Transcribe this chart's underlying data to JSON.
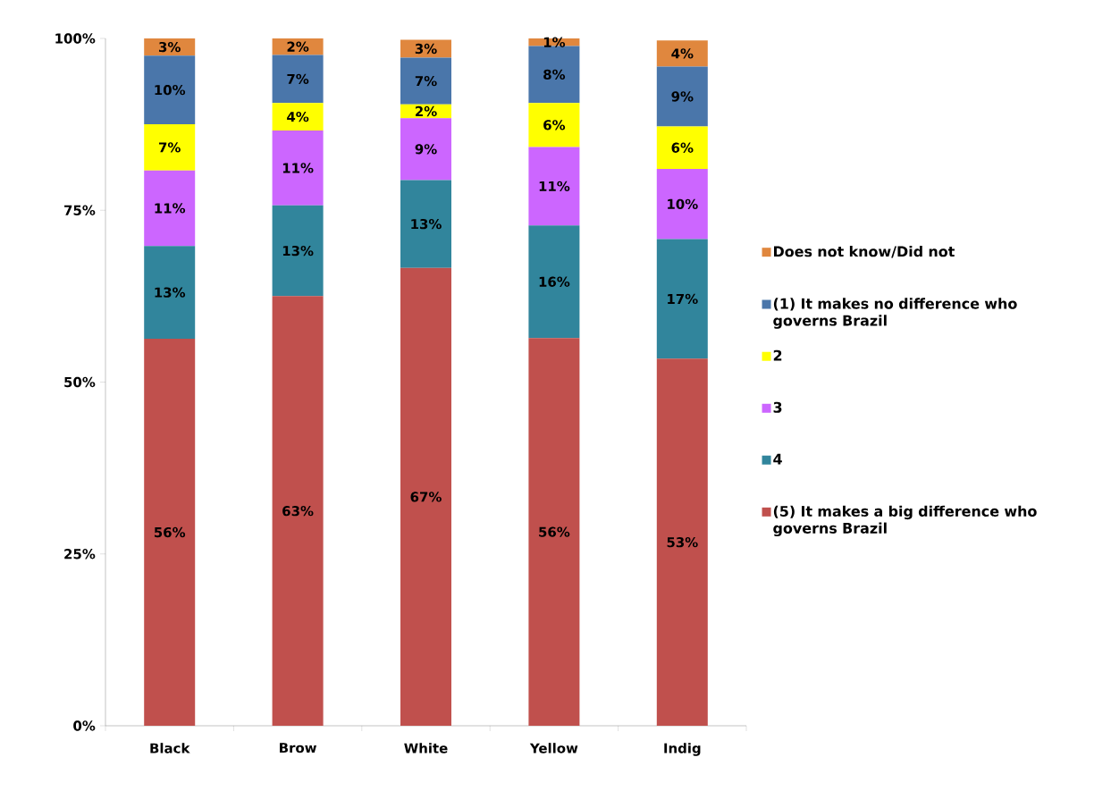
{
  "chart_data": {
    "type": "bar",
    "stacked": true,
    "categories": [
      "Black",
      "Brow",
      "White",
      "Yellow",
      "Indig"
    ],
    "series": [
      {
        "name": "(5) It makes a big difference who governs Brazil",
        "color": "#c0504d",
        "values": [
          56.3,
          62.5,
          66.6,
          56.4,
          53.4
        ],
        "value_labels": [
          "56%",
          "63%",
          "67%",
          "56%",
          "53%"
        ]
      },
      {
        "name": "4",
        "color": "#31859c",
        "values": [
          13.5,
          13.2,
          12.8,
          16.4,
          17.4
        ],
        "value_labels": [
          "13%",
          "13%",
          "13%",
          "16%",
          "17%"
        ]
      },
      {
        "name": "3",
        "color": "#cc66ff",
        "values": [
          11.0,
          10.9,
          9.0,
          11.4,
          10.2
        ],
        "value_labels": [
          "11%",
          "11%",
          "9%",
          "11%",
          "10%"
        ]
      },
      {
        "name": "2",
        "color": "#ffff00",
        "values": [
          6.7,
          4.0,
          2.0,
          6.4,
          6.2
        ],
        "value_labels": [
          "7%",
          "4%",
          "2%",
          "6%",
          "6%"
        ]
      },
      {
        "name": "(1) It makes no difference who governs Brazil",
        "color": "#4a76aa",
        "values": [
          10.0,
          7.0,
          6.8,
          8.3,
          8.7
        ],
        "value_labels": [
          "10%",
          "7%",
          "7%",
          "8%",
          "9%"
        ]
      },
      {
        "name": "Does not know/Did not",
        "color": "#e0873e",
        "values": [
          2.5,
          2.4,
          2.6,
          1.1,
          3.8
        ],
        "value_labels": [
          "3%",
          "2%",
          "3%",
          "1%",
          "4%"
        ]
      }
    ],
    "ylim": [
      0,
      100
    ],
    "yticks": [
      {
        "value": 0,
        "label": "0%"
      },
      {
        "value": 25,
        "label": "25%"
      },
      {
        "value": 50,
        "label": "50%"
      },
      {
        "value": 75,
        "label": "75%"
      },
      {
        "value": 100,
        "label": "100%"
      }
    ],
    "legend": "right"
  }
}
